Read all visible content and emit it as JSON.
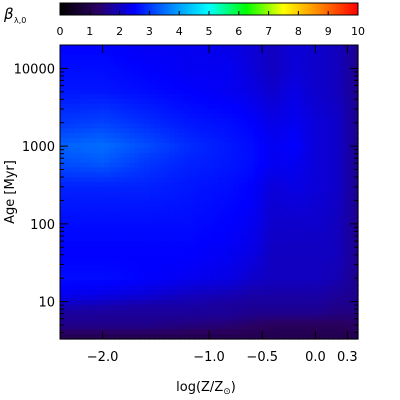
{
  "chart_data": {
    "type": "heatmap",
    "colorbar": {
      "label": "β",
      "label_subscript": "λ,0",
      "ticks": [
        "0",
        "1",
        "2",
        "3",
        "4",
        "5",
        "6",
        "7",
        "8",
        "9",
        "10"
      ],
      "range": [
        0,
        10
      ],
      "colors": [
        "#000000",
        "#2a0060",
        "#0000ff",
        "#0088ff",
        "#00ffff",
        "#00ff00",
        "#ffff00",
        "#ff8000",
        "#ff0000"
      ]
    },
    "x_axis": {
      "label": "log(Z/Z",
      "label_subscript": "⊙",
      "label_suffix": ")",
      "range": [
        -2.4,
        0.4
      ],
      "ticks": [
        {
          "value": -2.0,
          "label": "−2.0"
        },
        {
          "value": -1.0,
          "label": "−1.0"
        },
        {
          "value": -0.5,
          "label": "−0.5"
        },
        {
          "value": 0.0,
          "label": "0.0"
        },
        {
          "value": 0.3,
          "label": "0.3"
        }
      ]
    },
    "y_axis": {
      "label": "Age [Myr]",
      "scale": "log",
      "range": [
        3.3,
        20000
      ],
      "ticks": [
        {
          "value": 10,
          "label": "10"
        },
        {
          "value": 100,
          "label": "100"
        },
        {
          "value": 1000,
          "label": "1000"
        },
        {
          "value": 10000,
          "label": "10000"
        }
      ]
    },
    "z_samples": {
      "x": [
        -2.4,
        -2.0,
        -1.6,
        -1.2,
        -0.8,
        -0.6,
        -0.4,
        -0.2,
        0.0,
        0.2,
        0.4
      ],
      "y": [
        3.3,
        5,
        7,
        9,
        12,
        20,
        40,
        100,
        300,
        600,
        1000,
        2000,
        5000,
        10000,
        20000
      ],
      "z": [
        [
          1.0,
          1.0,
          1.0,
          1.0,
          1.0,
          1.0,
          1.0,
          1.0,
          1.0,
          1.0,
          1.0
        ],
        [
          1.6,
          1.6,
          1.6,
          1.5,
          1.4,
          1.3,
          1.2,
          1.2,
          1.2,
          1.2,
          1.3
        ],
        [
          1.7,
          1.7,
          1.7,
          1.7,
          1.7,
          1.6,
          1.6,
          1.6,
          1.6,
          1.5,
          1.5
        ],
        [
          2.0,
          1.9,
          1.8,
          1.8,
          1.7,
          1.7,
          1.7,
          1.7,
          1.7,
          1.6,
          1.6
        ],
        [
          2.4,
          2.3,
          2.2,
          2.0,
          1.9,
          1.8,
          1.8,
          1.8,
          1.8,
          1.7,
          1.6
        ],
        [
          2.6,
          2.6,
          2.5,
          2.4,
          2.3,
          2.1,
          2.0,
          2.0,
          2.0,
          1.9,
          1.6
        ],
        [
          2.5,
          2.5,
          2.5,
          2.5,
          2.4,
          2.3,
          2.0,
          2.0,
          2.0,
          2.0,
          1.6
        ],
        [
          2.6,
          2.6,
          2.6,
          2.6,
          2.5,
          2.4,
          2.1,
          2.1,
          2.1,
          2.0,
          1.6
        ],
        [
          2.8,
          2.8,
          2.8,
          2.7,
          2.6,
          2.5,
          2.2,
          2.3,
          2.2,
          2.1,
          1.6
        ],
        [
          3.2,
          3.3,
          3.0,
          2.8,
          2.7,
          2.6,
          2.4,
          2.4,
          2.2,
          2.1,
          1.6
        ],
        [
          3.4,
          3.5,
          3.2,
          2.9,
          2.7,
          2.6,
          2.4,
          2.5,
          2.2,
          2.1,
          1.6
        ],
        [
          3.0,
          3.1,
          2.9,
          2.7,
          2.6,
          2.5,
          2.3,
          2.4,
          2.2,
          2.1,
          1.6
        ],
        [
          2.7,
          2.7,
          2.6,
          2.5,
          2.4,
          2.3,
          2.1,
          2.3,
          2.1,
          2.0,
          1.6
        ],
        [
          2.6,
          2.6,
          2.5,
          2.4,
          2.4,
          2.2,
          2.0,
          2.2,
          2.1,
          2.0,
          1.6
        ],
        [
          2.5,
          2.5,
          2.4,
          2.4,
          2.3,
          2.2,
          2.0,
          2.2,
          2.1,
          2.0,
          1.6
        ]
      ]
    }
  }
}
